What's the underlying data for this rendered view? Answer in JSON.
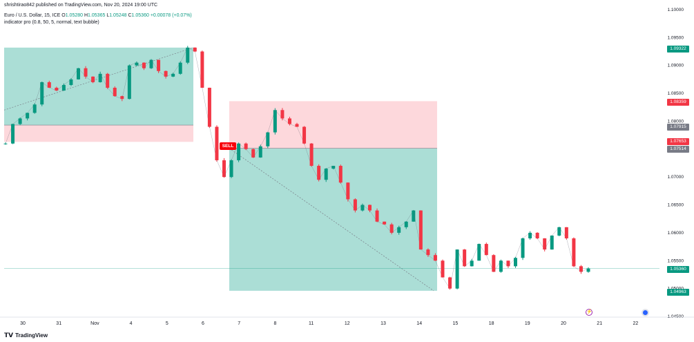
{
  "header": {
    "published": "shrishtirao842 published on TradingView.com, Nov 20, 2024 19:00 UTC",
    "symbol": "Euro / U.S. Dollar, 15, ICE",
    "o_label": "O",
    "o": "1.05280",
    "h_label": "H",
    "h": "1.05365",
    "l_label": "L",
    "l": "1.05248",
    "c_label": "C",
    "c": "1.05360",
    "change": "+0.00078 (+0.07%)",
    "indicator": "indicator pro (0.8, 50, 5, normal, text bubble)"
  },
  "footer": {
    "brand": "TradingView",
    "logo": "tradingview-logo"
  },
  "price_tags": {
    "t1": "1.09322",
    "t2": "1.08359",
    "t3": "1.07915",
    "t4": "1.07653",
    "t5": "1.07514",
    "t6": "1.05360",
    "t7": "1.04963"
  },
  "colors": {
    "up": "#089981",
    "down": "#f23645",
    "tp_zone": "#a6dcd4",
    "sl_zone": "#fdd6da",
    "sell": "#f7000a",
    "grey_tag": "#787b86"
  },
  "signal": {
    "label": "SELL"
  },
  "chart_data": {
    "type": "line",
    "title": "",
    "x_ticks": [
      "30",
      "31",
      "Nov",
      "4",
      "5",
      "6",
      "7",
      "8",
      "11",
      "12",
      "13",
      "14",
      "15",
      "18",
      "19",
      "20",
      "21",
      "22"
    ],
    "y_ticks": [
      "1.10000",
      "1.09500",
      "1.09000",
      "1.08500",
      "1.08000",
      "1.07500",
      "1.07000",
      "1.06500",
      "1.06000",
      "1.05500",
      "1.05000",
      "1.04500"
    ],
    "ylim": [
      1.045,
      1.1
    ],
    "series": [
      {
        "values": [
          1.076,
          1.0795,
          1.0805,
          1.0815,
          1.083,
          1.087,
          1.086,
          1.0855,
          1.0865,
          1.0875,
          1.0895,
          1.088,
          1.087,
          1.0885,
          1.086,
          1.0845,
          1.084,
          1.09,
          1.0905,
          1.0895,
          1.091,
          1.089,
          1.088,
          1.0885,
          1.0905,
          1.0932,
          1.0925,
          1.086,
          1.079,
          1.073,
          1.07,
          1.073,
          1.076,
          1.075,
          1.0735,
          1.0755,
          1.078,
          1.082,
          1.0805,
          1.0795,
          1.079,
          1.076,
          1.072,
          1.0695,
          1.0715,
          1.072,
          1.069,
          1.066,
          1.064,
          1.065,
          1.064,
          1.062,
          1.0615,
          1.06,
          1.061,
          1.062,
          1.064,
          1.057,
          1.056,
          1.055,
          1.052,
          1.05,
          1.057,
          1.054,
          1.055,
          1.058,
          1.056,
          1.053,
          1.055,
          1.054,
          1.0555,
          1.059,
          1.06,
          1.059,
          1.057,
          1.0595,
          1.061,
          1.059,
          1.054,
          1.053,
          1.0536
        ]
      }
    ],
    "trades": [
      {
        "entry": 1.0793,
        "tp": 1.0932,
        "sl": 1.0763
      },
      {
        "entry": 1.07514,
        "tp": 1.0496,
        "sl": 1.0836
      }
    ],
    "grid": false,
    "legend": "none"
  }
}
